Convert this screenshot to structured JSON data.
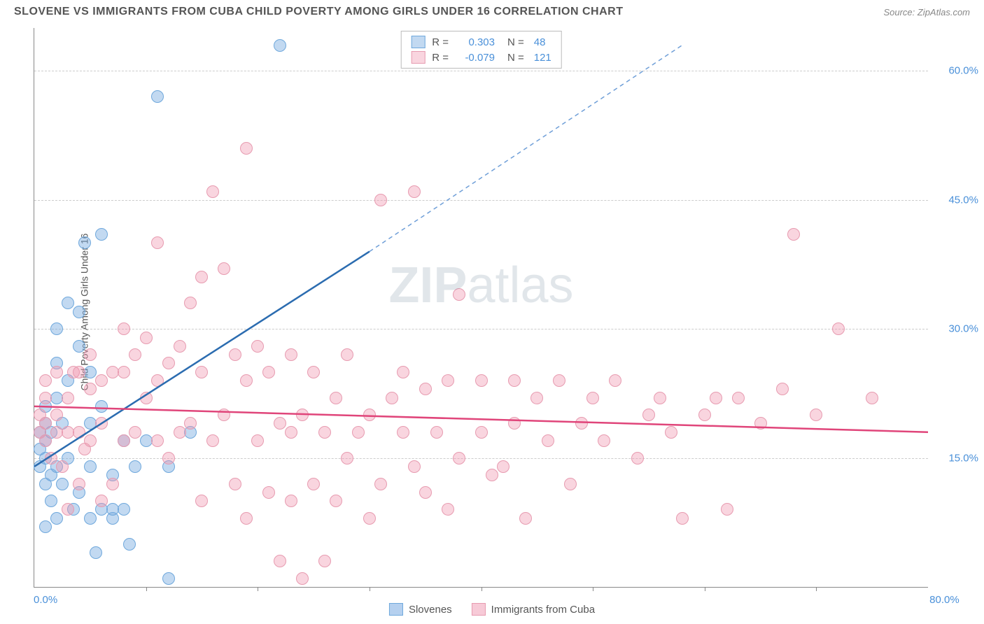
{
  "title": "SLOVENE VS IMMIGRANTS FROM CUBA CHILD POVERTY AMONG GIRLS UNDER 16 CORRELATION CHART",
  "source": "Source: ZipAtlas.com",
  "ylabel": "Child Poverty Among Girls Under 16",
  "watermark_bold": "ZIP",
  "watermark_rest": "atlas",
  "chart": {
    "type": "scatter",
    "background_color": "#ffffff",
    "grid_color": "#cccccc",
    "axis_color": "#888888",
    "xlim": [
      0,
      80
    ],
    "ylim": [
      0,
      65
    ],
    "xtick_left": "0.0%",
    "xtick_right": "80.0%",
    "xtick_marks": [
      10,
      20,
      30,
      40,
      50,
      60,
      70
    ],
    "yticks": [
      {
        "v": 15,
        "label": "15.0%"
      },
      {
        "v": 30,
        "label": "30.0%"
      },
      {
        "v": 45,
        "label": "45.0%"
      },
      {
        "v": 60,
        "label": "60.0%"
      }
    ],
    "series": [
      {
        "name": "Slovenes",
        "fill": "rgba(120,170,225,0.45)",
        "stroke": "#6fa8dc",
        "line_color": "#2b6cb0",
        "dash_color": "#6f9fd8",
        "R": "0.303",
        "N": "48",
        "trend": {
          "x1": 0,
          "y1": 14,
          "x2": 30,
          "y2": 39,
          "dash_x2": 58,
          "dash_y2": 63
        },
        "points": [
          [
            0.5,
            14
          ],
          [
            0.5,
            16
          ],
          [
            0.5,
            18
          ],
          [
            1,
            12
          ],
          [
            1,
            15
          ],
          [
            1,
            17
          ],
          [
            1,
            19
          ],
          [
            1,
            21
          ],
          [
            1.5,
            10
          ],
          [
            1.5,
            13
          ],
          [
            1.5,
            18
          ],
          [
            2,
            8
          ],
          [
            2,
            14
          ],
          [
            2,
            22
          ],
          [
            2,
            26
          ],
          [
            2,
            30
          ],
          [
            2.5,
            12
          ],
          [
            2.5,
            19
          ],
          [
            3,
            15
          ],
          [
            3,
            24
          ],
          [
            3,
            33
          ],
          [
            3.5,
            9
          ],
          [
            4,
            11
          ],
          [
            4,
            28
          ],
          [
            4,
            32
          ],
          [
            4.5,
            40
          ],
          [
            5,
            8
          ],
          [
            5,
            14
          ],
          [
            5,
            19
          ],
          [
            5,
            25
          ],
          [
            5.5,
            4
          ],
          [
            6,
            9
          ],
          [
            6,
            21
          ],
          [
            6,
            41
          ],
          [
            7,
            8
          ],
          [
            7,
            9
          ],
          [
            7,
            13
          ],
          [
            8,
            9
          ],
          [
            8,
            17
          ],
          [
            8.5,
            5
          ],
          [
            9,
            14
          ],
          [
            10,
            17
          ],
          [
            11,
            57
          ],
          [
            12,
            14
          ],
          [
            12,
            1
          ],
          [
            14,
            18
          ],
          [
            22,
            63
          ],
          [
            1,
            7
          ]
        ]
      },
      {
        "name": "Immigrants from Cuba",
        "fill": "rgba(240,150,175,0.40)",
        "stroke": "#e79bb0",
        "line_color": "#e0457a",
        "R": "-0.079",
        "N": "121",
        "trend": {
          "x1": 0,
          "y1": 21,
          "x2": 80,
          "y2": 18
        },
        "points": [
          [
            0.5,
            18
          ],
          [
            0.5,
            20
          ],
          [
            1,
            17
          ],
          [
            1,
            19
          ],
          [
            1,
            22
          ],
          [
            1,
            24
          ],
          [
            1.5,
            15
          ],
          [
            2,
            18
          ],
          [
            2,
            20
          ],
          [
            2,
            25
          ],
          [
            2.5,
            14
          ],
          [
            3,
            9
          ],
          [
            3,
            18
          ],
          [
            3,
            22
          ],
          [
            3.5,
            25
          ],
          [
            4,
            12
          ],
          [
            4,
            18
          ],
          [
            4,
            25
          ],
          [
            4.5,
            16
          ],
          [
            5,
            17
          ],
          [
            5,
            23
          ],
          [
            5,
            27
          ],
          [
            6,
            10
          ],
          [
            6,
            19
          ],
          [
            6,
            24
          ],
          [
            7,
            12
          ],
          [
            7,
            25
          ],
          [
            8,
            17
          ],
          [
            8,
            25
          ],
          [
            8,
            30
          ],
          [
            9,
            18
          ],
          [
            9,
            27
          ],
          [
            10,
            22
          ],
          [
            10,
            29
          ],
          [
            11,
            17
          ],
          [
            11,
            24
          ],
          [
            11,
            40
          ],
          [
            12,
            15
          ],
          [
            12,
            26
          ],
          [
            13,
            18
          ],
          [
            13,
            28
          ],
          [
            14,
            19
          ],
          [
            14,
            33
          ],
          [
            15,
            10
          ],
          [
            15,
            25
          ],
          [
            15,
            36
          ],
          [
            16,
            17
          ],
          [
            16,
            46
          ],
          [
            17,
            20
          ],
          [
            17,
            37
          ],
          [
            18,
            12
          ],
          [
            18,
            27
          ],
          [
            19,
            8
          ],
          [
            19,
            24
          ],
          [
            19,
            51
          ],
          [
            20,
            17
          ],
          [
            20,
            28
          ],
          [
            21,
            11
          ],
          [
            21,
            25
          ],
          [
            22,
            3
          ],
          [
            22,
            19
          ],
          [
            23,
            10
          ],
          [
            23,
            18
          ],
          [
            23,
            27
          ],
          [
            24,
            1
          ],
          [
            24,
            20
          ],
          [
            25,
            12
          ],
          [
            25,
            25
          ],
          [
            26,
            3
          ],
          [
            26,
            18
          ],
          [
            27,
            10
          ],
          [
            27,
            22
          ],
          [
            28,
            15
          ],
          [
            28,
            27
          ],
          [
            29,
            18
          ],
          [
            30,
            8
          ],
          [
            30,
            20
          ],
          [
            31,
            12
          ],
          [
            31,
            45
          ],
          [
            32,
            22
          ],
          [
            33,
            18
          ],
          [
            33,
            25
          ],
          [
            34,
            14
          ],
          [
            34,
            46
          ],
          [
            35,
            11
          ],
          [
            35,
            23
          ],
          [
            36,
            18
          ],
          [
            37,
            9
          ],
          [
            37,
            24
          ],
          [
            38,
            15
          ],
          [
            38,
            34
          ],
          [
            40,
            18
          ],
          [
            40,
            24
          ],
          [
            41,
            13
          ],
          [
            42,
            14
          ],
          [
            43,
            19
          ],
          [
            43,
            24
          ],
          [
            44,
            8
          ],
          [
            45,
            22
          ],
          [
            46,
            17
          ],
          [
            47,
            24
          ],
          [
            48,
            12
          ],
          [
            49,
            19
          ],
          [
            50,
            22
          ],
          [
            51,
            17
          ],
          [
            52,
            24
          ],
          [
            54,
            15
          ],
          [
            55,
            20
          ],
          [
            56,
            22
          ],
          [
            57,
            18
          ],
          [
            58,
            8
          ],
          [
            60,
            20
          ],
          [
            61,
            22
          ],
          [
            62,
            9
          ],
          [
            63,
            22
          ],
          [
            65,
            19
          ],
          [
            67,
            23
          ],
          [
            68,
            41
          ],
          [
            70,
            20
          ],
          [
            72,
            30
          ],
          [
            75,
            22
          ]
        ]
      }
    ]
  },
  "bottom_legend": [
    {
      "label": "Slovenes",
      "fill": "rgba(120,170,225,0.55)",
      "stroke": "#6fa8dc"
    },
    {
      "label": "Immigrants from Cuba",
      "fill": "rgba(240,150,175,0.50)",
      "stroke": "#e79bb0"
    }
  ]
}
